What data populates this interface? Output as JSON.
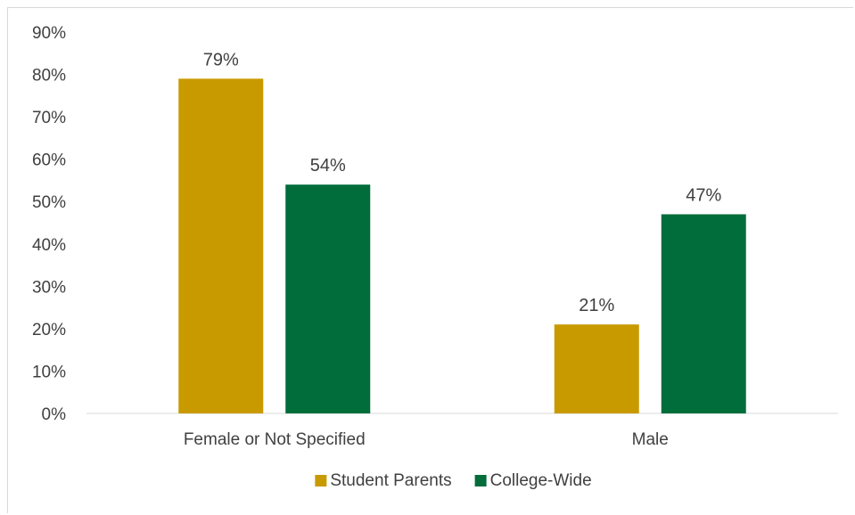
{
  "chart_data": {
    "type": "bar",
    "title": "",
    "xlabel": "",
    "ylabel": "",
    "categories": [
      "Female or Not Specified",
      "Male"
    ],
    "series": [
      {
        "name": "Student Parents",
        "values": [
          79,
          21
        ],
        "labels": [
          "79%",
          "21%"
        ],
        "color": "#c99a00"
      },
      {
        "name": "College-Wide",
        "values": [
          54,
          47
        ],
        "labels": [
          "54%",
          "47%"
        ],
        "color": "#006d3b"
      }
    ],
    "ylim": [
      0,
      90
    ],
    "yticks": [
      0,
      10,
      20,
      30,
      40,
      50,
      60,
      70,
      80,
      90
    ],
    "ytick_labels": [
      "0%",
      "10%",
      "20%",
      "30%",
      "40%",
      "50%",
      "60%",
      "70%",
      "80%",
      "90%"
    ],
    "grid": false,
    "legend_position": "bottom",
    "axis_color": "#d9d9d9"
  }
}
